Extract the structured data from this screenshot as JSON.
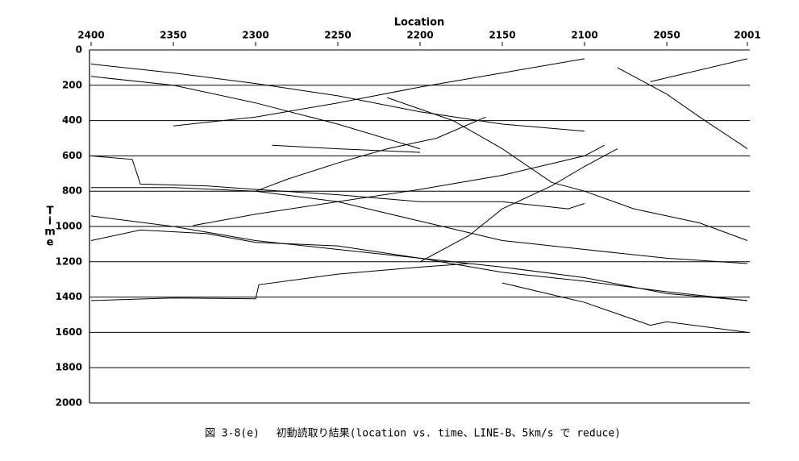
{
  "chart_data": {
    "type": "line",
    "x_label": "Location",
    "y_label": "Time",
    "caption": "図 3-8(e)　 初動読取り結果(location vs. time、LINE-B、5km/s で reduce)",
    "color": "#000000",
    "grid": true,
    "xlim": [
      2400,
      2001
    ],
    "xticks": [
      2400,
      2350,
      2300,
      2250,
      2200,
      2150,
      2100,
      2050,
      2001
    ],
    "ylim": [
      2000,
      0
    ],
    "yticks": [
      0,
      200,
      400,
      600,
      800,
      1000,
      1200,
      1400,
      1600,
      1800,
      2000
    ],
    "series": [
      {
        "x": [
          2400,
          2350,
          2300,
          2298,
          2250,
          2200,
          2170
        ],
        "values": [
          1420,
          1405,
          1410,
          1330,
          1270,
          1230,
          1210
        ]
      },
      {
        "x": [
          2400,
          2375,
          2370,
          2330,
          2300,
          2250,
          2200,
          2150,
          2110,
          2100
        ],
        "values": [
          600,
          620,
          760,
          770,
          790,
          820,
          860,
          860,
          900,
          870
        ]
      },
      {
        "x": [
          2400,
          2350,
          2300,
          2250,
          2200,
          2150,
          2100,
          2050,
          2001
        ],
        "values": [
          780,
          780,
          800,
          860,
          970,
          1080,
          1130,
          1180,
          1210
        ]
      },
      {
        "x": [
          2400,
          2350,
          2300,
          2250,
          2200,
          2150,
          2100,
          2050,
          2001
        ],
        "values": [
          940,
          1000,
          1080,
          1130,
          1180,
          1260,
          1310,
          1370,
          1420
        ]
      },
      {
        "x": [
          2400,
          2370,
          2330,
          2300,
          2250,
          2200,
          2150,
          2100,
          2050,
          2001
        ],
        "values": [
          1080,
          1020,
          1040,
          1090,
          1110,
          1180,
          1230,
          1290,
          1380,
          1420
        ]
      },
      {
        "x": [
          2338,
          2300,
          2250,
          2200,
          2150,
          2100,
          2088
        ],
        "values": [
          995,
          930,
          860,
          790,
          710,
          600,
          540
        ]
      },
      {
        "x": [
          2200,
          2170,
          2150,
          2120,
          2100,
          2080
        ],
        "values": [
          1200,
          1050,
          900,
          770,
          660,
          560
        ]
      },
      {
        "x": [
          2400,
          2350,
          2300,
          2250,
          2200
        ],
        "values": [
          150,
          200,
          300,
          420,
          560
        ]
      },
      {
        "x": [
          2220,
          2180,
          2150,
          2120,
          2100,
          2070,
          2030,
          2001
        ],
        "values": [
          270,
          400,
          560,
          750,
          800,
          900,
          980,
          1080
        ]
      },
      {
        "x": [
          2300,
          2280,
          2250,
          2220,
          2190,
          2160
        ],
        "values": [
          800,
          730,
          640,
          560,
          500,
          380
        ]
      },
      {
        "x": [
          2400,
          2350,
          2300,
          2250,
          2200,
          2150,
          2100
        ],
        "values": [
          80,
          130,
          190,
          260,
          350,
          420,
          460
        ]
      },
      {
        "x": [
          2100,
          2150,
          2200,
          2250,
          2300,
          2350
        ],
        "values": [
          50,
          130,
          210,
          300,
          380,
          430
        ]
      },
      {
        "x": [
          2080,
          2050,
          2030,
          2001
        ],
        "values": [
          100,
          250,
          380,
          560
        ]
      },
      {
        "x": [
          2290,
          2250,
          2200
        ],
        "values": [
          540,
          560,
          580
        ]
      },
      {
        "x": [
          2060,
          2001
        ],
        "values": [
          180,
          50
        ]
      },
      {
        "x": [
          2150,
          2100,
          2060,
          2050,
          2001
        ],
        "values": [
          1320,
          1430,
          1560,
          1540,
          1600
        ]
      }
    ]
  }
}
